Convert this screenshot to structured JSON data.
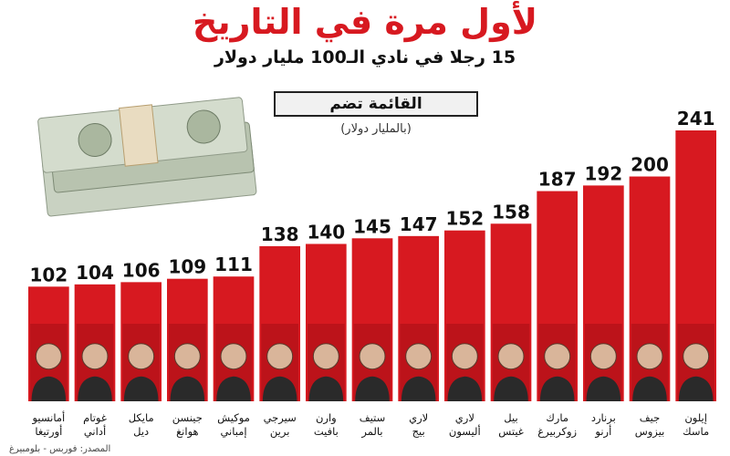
{
  "header": {
    "title": "لأول مرة في التاريخ",
    "subtitle": "15 رجلا في نادي الـ100 مليار دولار",
    "list_label": "القائمة تضم",
    "unit": "(بالمليار دولار)"
  },
  "footer": {
    "source": "المصدر: فوربس - بلومبيرغ"
  },
  "colors": {
    "bar": "#d71920",
    "bar_dark": "#a50f15",
    "title": "#d71920"
  },
  "chart_data": {
    "type": "bar",
    "title": "لأول مرة في التاريخ",
    "subtitle": "15 رجلا في نادي الـ100 مليار دولار",
    "ylabel": "(بالمليار دولار)",
    "categories": [
      {
        "line1": "إيلون",
        "line2": "ماسك"
      },
      {
        "line1": "جيف",
        "line2": "بيزوس"
      },
      {
        "line1": "برنارد",
        "line2": "أرنو"
      },
      {
        "line1": "مارك",
        "line2": "زوكربيرغ"
      },
      {
        "line1": "بيل",
        "line2": "غيتس"
      },
      {
        "line1": "لاري",
        "line2": "أليسون"
      },
      {
        "line1": "لاري",
        "line2": "بيج"
      },
      {
        "line1": "ستيف",
        "line2": "بالمر"
      },
      {
        "line1": "وارن",
        "line2": "بافيت"
      },
      {
        "line1": "سيرجي",
        "line2": "برين"
      },
      {
        "line1": "موكيش",
        "line2": "إمباني"
      },
      {
        "line1": "جينسن",
        "line2": "هوانغ"
      },
      {
        "line1": "مايكل",
        "line2": "ديل"
      },
      {
        "line1": "غوتام",
        "line2": "أداني"
      },
      {
        "line1": "أمانسيو",
        "line2": "أورتيغا"
      }
    ],
    "values": [
      241,
      200,
      192,
      187,
      158,
      152,
      147,
      145,
      140,
      138,
      111,
      109,
      106,
      104,
      102
    ],
    "ylim": [
      0,
      250
    ],
    "grid": false,
    "legend": "none"
  }
}
